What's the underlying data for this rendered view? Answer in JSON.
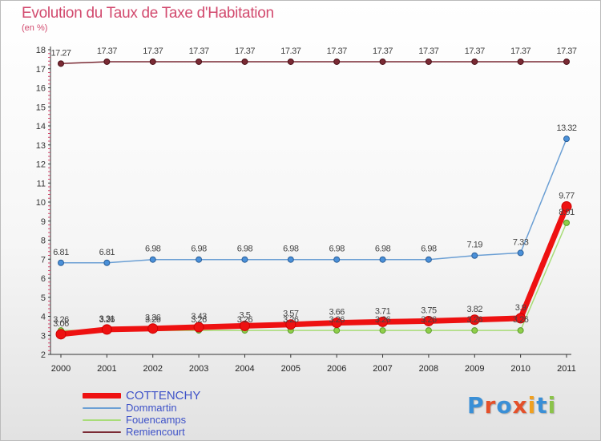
{
  "header": {
    "title": "Evolution du Taux de Taxe d'Habitation",
    "subtitle": "(en %)"
  },
  "logo": {
    "text": "Proxiti",
    "colors": [
      "#3a8fd6",
      "#e4502a",
      "#3a8fd6",
      "#e4502a",
      "#f0a020",
      "#3a8fd6",
      "#8bc34a"
    ]
  },
  "chart_data": {
    "type": "line",
    "title": "Evolution du Taux de Taxe d'Habitation",
    "ylabel": "(en %)",
    "xlabel": "",
    "x": [
      "2000",
      "2001",
      "2002",
      "2003",
      "2004",
      "2005",
      "2006",
      "2007",
      "2008",
      "2009",
      "2010",
      "2011"
    ],
    "ylim": [
      2,
      18
    ],
    "yticks": [
      "2",
      "3",
      "4",
      "5",
      "6",
      "7",
      "8",
      "9",
      "10",
      "11",
      "12",
      "13",
      "14",
      "15",
      "16",
      "17",
      "18"
    ],
    "grid": false,
    "legend": "bottom-left",
    "series": [
      {
        "name": "COTTENCHY",
        "color": "#ee1111",
        "values": [
          3.06,
          3.31,
          3.36,
          3.43,
          3.5,
          3.57,
          3.66,
          3.71,
          3.75,
          3.82,
          3.9,
          9.77
        ],
        "labels": [
          "3.06",
          "3.31",
          "3.36",
          "3.43",
          "3.5",
          "3.57",
          "3.66",
          "3.71",
          "3.75",
          "3.82",
          "3.9",
          "9.77"
        ]
      },
      {
        "name": "Dommartin",
        "color": "#6b9fd4",
        "values": [
          6.81,
          6.81,
          6.98,
          6.98,
          6.98,
          6.98,
          6.98,
          6.98,
          6.98,
          7.19,
          7.33,
          13.32
        ],
        "labels": [
          "6.81",
          "6.81",
          "6.98",
          "6.98",
          "6.98",
          "6.98",
          "6.98",
          "6.98",
          "6.98",
          "7.19",
          "7.33",
          "13.32"
        ]
      },
      {
        "name": "Fouencamps",
        "color": "#a8dc78",
        "values": [
          3.26,
          3.26,
          3.26,
          3.26,
          3.26,
          3.26,
          3.26,
          3.26,
          3.26,
          3.26,
          3.26,
          8.91
        ],
        "labels": [
          "3.26",
          "3.26",
          "3.26",
          "3.26",
          "3.26",
          "3.26",
          "3.26",
          "3.26",
          "3.26",
          "3.26",
          "3.26",
          "8.91"
        ]
      },
      {
        "name": "Remiencourt",
        "color": "#7a2a34",
        "values": [
          17.27,
          17.37,
          17.37,
          17.37,
          17.37,
          17.37,
          17.37,
          17.37,
          17.37,
          17.37,
          17.37,
          17.37
        ],
        "labels": [
          "17.27",
          "17.37",
          "17.37",
          "17.37",
          "17.37",
          "17.37",
          "17.37",
          "17.37",
          "17.37",
          "17.37",
          "17.37",
          "17.37"
        ]
      }
    ]
  }
}
